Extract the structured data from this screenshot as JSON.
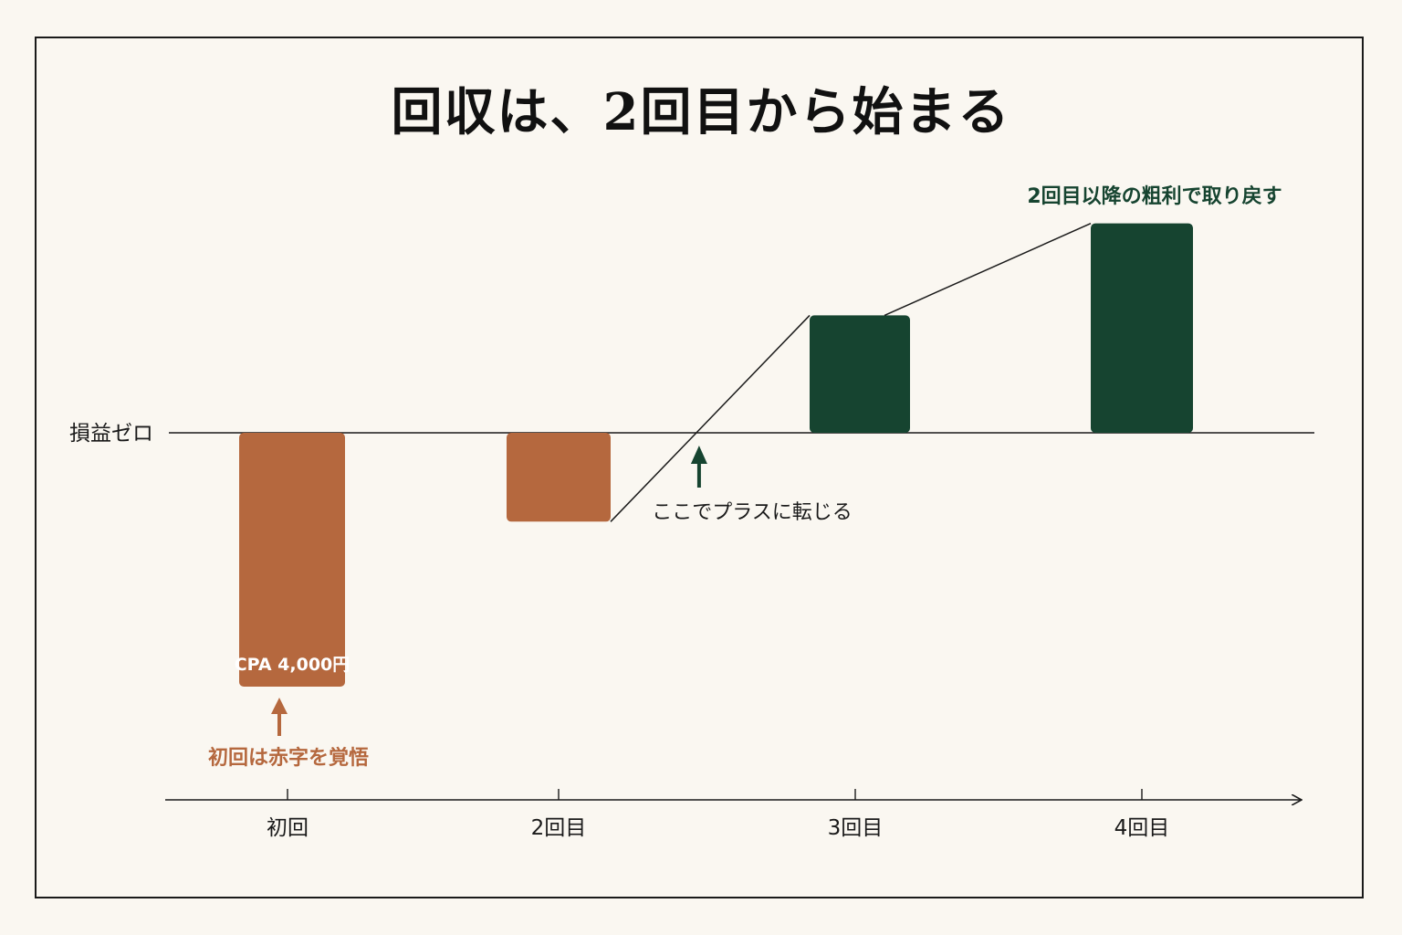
{
  "chart_data": {
    "type": "bar",
    "title": "回収は、2回目から始まる",
    "categories": [
      "初回",
      "2回目",
      "3回目",
      "4回目"
    ],
    "values": [
      -4000,
      -1400,
      1850,
      3300
    ],
    "ylim": [
      -6000,
      4500
    ],
    "zero_line_label": "損益ゼロ",
    "bar_labels": [
      "CPA 4,000円",
      "",
      "",
      ""
    ],
    "colors": {
      "negative": "#b5683e",
      "positive": "#164430",
      "axis": "#1a1a1a",
      "loss_annotation": "#b5683e",
      "profit_annotation": "#164430"
    },
    "annotations": {
      "first_loss": "初回は赤字を覚悟",
      "turn_positive": "ここでプラスに転じる",
      "recovery": "2回目以降の粗利で取り戻す"
    },
    "grid": false,
    "legend": "none"
  }
}
